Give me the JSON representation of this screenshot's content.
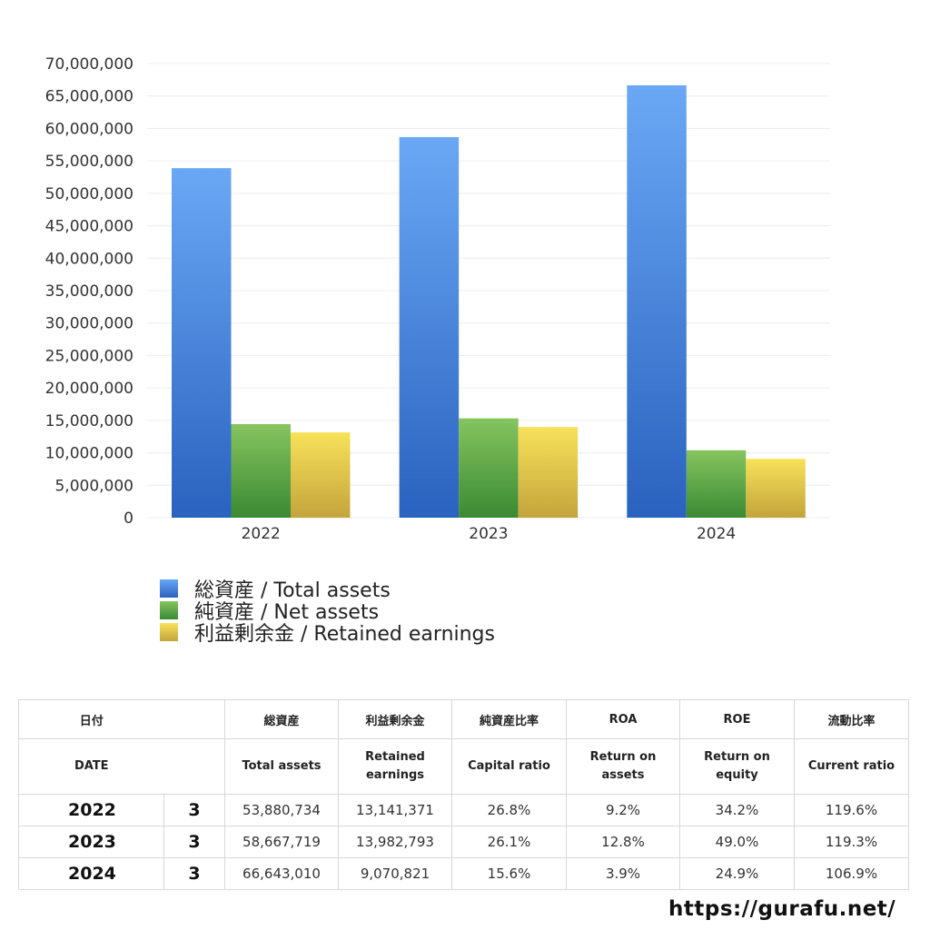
{
  "chart_data": {
    "type": "bar",
    "categories": [
      "2022",
      "2023",
      "2024"
    ],
    "series": [
      {
        "name": "総資産 / Total assets",
        "values": [
          53880734,
          58667719,
          66643010
        ]
      },
      {
        "name": "純資産 / Net assets",
        "values": [
          14420000,
          15310000,
          10390000
        ]
      },
      {
        "name": "利益剰余金 / Retained earnings",
        "values": [
          13141371,
          13982793,
          9070821
        ]
      }
    ],
    "yticks": [
      "0",
      "5,000,000",
      "10,000,000",
      "15,000,000",
      "20,000,000",
      "25,000,000",
      "30,000,000",
      "35,000,000",
      "40,000,000",
      "45,000,000",
      "50,000,000",
      "55,000,000",
      "60,000,000",
      "65,000,000",
      "70,000,000"
    ],
    "ylim": [
      0,
      70000000
    ],
    "grid": true,
    "legend_position": "bottom-left",
    "colors": {
      "total_top": "#6aa8f5",
      "total_bottom": "#2a62bf",
      "net_top": "#86c45e",
      "net_bottom": "#3a8a34",
      "retained_top": "#f7e25a",
      "retained_bottom": "#c4a43c"
    }
  },
  "legend": [
    {
      "label": "総資産 / Total assets"
    },
    {
      "label": "純資産 / Net assets"
    },
    {
      "label": "利益剰余金 / Retained earnings"
    }
  ],
  "table": {
    "headers_jp": [
      "日付",
      "",
      "総資産",
      "利益剰余金",
      "純資産比率",
      "ROA",
      "ROE",
      "流動比率"
    ],
    "headers_en": [
      "DATE",
      "",
      "Total assets",
      "Retained\nearnings",
      "Capital ratio",
      "Return on\nassets",
      "Return on\nequity",
      "Current ratio"
    ],
    "rows": [
      [
        "2022",
        "3",
        "53,880,734",
        "13,141,371",
        "26.8%",
        "9.2%",
        "34.2%",
        "119.6%"
      ],
      [
        "2023",
        "3",
        "58,667,719",
        "13,982,793",
        "26.1%",
        "12.8%",
        "49.0%",
        "119.3%"
      ],
      [
        "2024",
        "3",
        "66,643,010",
        "9,070,821",
        "15.6%",
        "3.9%",
        "24.9%",
        "106.9%"
      ]
    ]
  },
  "footer": {
    "url": "https://gurafu.net/"
  }
}
